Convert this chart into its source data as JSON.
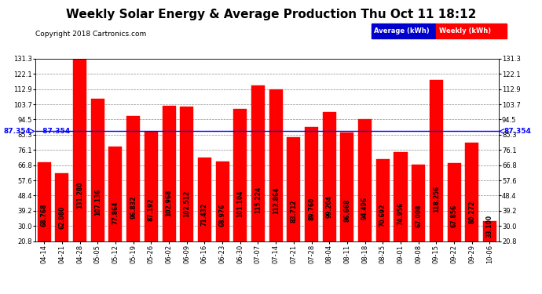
{
  "title": "Weekly Solar Energy & Average Production Thu Oct 11 18:12",
  "copyright": "Copyright 2018 Cartronics.com",
  "legend_avg": "Average (kWh)",
  "legend_weekly": "Weekly (kWh)",
  "average_value": 87.354,
  "categories": [
    "04-14",
    "04-21",
    "04-28",
    "05-05",
    "05-12",
    "05-19",
    "05-26",
    "06-02",
    "06-09",
    "06-16",
    "06-23",
    "06-30",
    "07-07",
    "07-14",
    "07-21",
    "07-28",
    "08-04",
    "08-11",
    "08-18",
    "08-25",
    "09-01",
    "09-08",
    "09-15",
    "09-22",
    "09-29",
    "10-06"
  ],
  "values": [
    68.768,
    62.08,
    131.28,
    107.136,
    77.864,
    96.832,
    87.192,
    102.968,
    102.512,
    71.432,
    68.976,
    101.104,
    115.224,
    112.864,
    83.712,
    89.76,
    99.204,
    86.668,
    94.496,
    70.692,
    74.956,
    67.008,
    118.256,
    67.856,
    80.272,
    33.1
  ],
  "bar_color": "#ff0000",
  "avg_line_color": "#0000ff",
  "background_color": "#ffffff",
  "grid_color": "#888888",
  "ylim_min": 20.8,
  "ylim_max": 131.3,
  "ytick_labels": [
    "20.8",
    "30.0",
    "39.2",
    "48.4",
    "57.6",
    "66.8",
    "76.1",
    "85.3",
    "94.5",
    "103.7",
    "112.9",
    "122.1",
    "131.3"
  ],
  "ytick_values": [
    20.8,
    30.0,
    39.2,
    48.4,
    57.6,
    66.8,
    76.1,
    85.3,
    94.5,
    103.7,
    112.9,
    122.1,
    131.3
  ],
  "title_fontsize": 11,
  "copyright_fontsize": 6.5,
  "label_fontsize": 5.5,
  "tick_fontsize": 6,
  "avg_label_fontsize": 6.5,
  "legend_avg_color": "#0000cc",
  "legend_weekly_color": "#ff0000"
}
